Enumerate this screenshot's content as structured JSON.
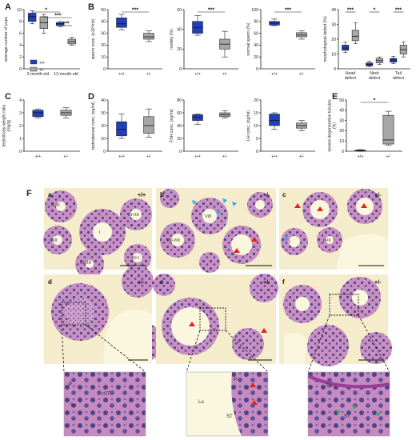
{
  "colors": {
    "wt": "#1f3fbf",
    "het": "#a7a7a7",
    "tissue_bg": "#f6f0cf",
    "tissue": "#c98fc2",
    "nuclei": "#4f4a8a",
    "lumen": "#fbf7df"
  },
  "legend": {
    "wt": "+/+",
    "het": "+/-"
  },
  "sig": {
    "s1": "*",
    "s3": "***"
  },
  "chart_data": [
    {
      "panel": "A",
      "type": "box",
      "ylabel": "average number of pups",
      "ylim": [
        0,
        10
      ],
      "yticks": [
        0,
        2,
        4,
        6,
        8,
        10
      ],
      "categories": [
        "2-month-old",
        "12-month-old"
      ],
      "series": [
        {
          "name": "+/+",
          "boxes": [
            {
              "min": 7.6,
              "q1": 8.0,
              "median": 8.8,
              "q3": 9.4,
              "max": 9.8
            },
            {
              "min": 7.1,
              "q1": 7.3,
              "median": 7.6,
              "q3": 7.8,
              "max": 8.0
            }
          ]
        },
        {
          "name": "+/-",
          "boxes": [
            {
              "min": 6.0,
              "q1": 6.8,
              "median": 7.8,
              "q3": 8.8,
              "max": 9.2
            },
            {
              "min": 4.0,
              "q1": 4.2,
              "median": 4.6,
              "q3": 5.0,
              "max": 5.3
            }
          ]
        }
      ],
      "annotations": [
        "*",
        "***",
        "***"
      ]
    },
    {
      "panel": "B",
      "type": "box",
      "ylabel": "sperm conc. (x10⁶/ml)",
      "ylim": [
        0,
        50
      ],
      "yticks": [
        0,
        10,
        20,
        30,
        40,
        50
      ],
      "categories": [
        "+/+",
        "+/-"
      ],
      "boxes": [
        {
          "min": 33,
          "q1": 35,
          "median": 38,
          "q3": 43,
          "max": 46
        },
        {
          "min": 23,
          "q1": 25,
          "median": 27,
          "q3": 30,
          "max": 32
        }
      ],
      "annotations": [
        "***"
      ]
    },
    {
      "panel": "B",
      "type": "box",
      "ylabel": "motility (%)",
      "ylim": [
        0,
        60
      ],
      "yticks": [
        0,
        20,
        40,
        60
      ],
      "categories": [
        "+/+",
        "+/-"
      ],
      "boxes": [
        {
          "min": 34,
          "q1": 36,
          "median": 42,
          "q3": 48,
          "max": 54
        },
        {
          "min": 12,
          "q1": 20,
          "median": 25,
          "q3": 30,
          "max": 38
        }
      ],
      "annotations": [
        "***"
      ]
    },
    {
      "panel": "B",
      "type": "box",
      "ylabel": "normal sperm (%)",
      "ylim": [
        0,
        100
      ],
      "yticks": [
        0,
        20,
        40,
        60,
        80,
        100
      ],
      "categories": [
        "+/+",
        "+/-"
      ],
      "boxes": [
        {
          "min": 73,
          "q1": 74,
          "median": 77,
          "q3": 80,
          "max": 84
        },
        {
          "min": 50,
          "q1": 54,
          "median": 57,
          "q3": 61,
          "max": 64
        }
      ],
      "annotations": [
        "***"
      ]
    },
    {
      "panel": "B",
      "type": "box",
      "ylabel": "morphological defect (%)",
      "ylim": [
        0,
        40
      ],
      "yticks": [
        0,
        10,
        20,
        30,
        40
      ],
      "categories": [
        "Head defect",
        "Neck defect",
        "Tail defect"
      ],
      "series": [
        {
          "name": "+/+",
          "boxes": [
            {
              "min": 11,
              "q1": 12.5,
              "median": 14,
              "q3": 16,
              "max": 18
            },
            {
              "min": 1.5,
              "q1": 2,
              "median": 3,
              "q3": 4,
              "max": 5
            },
            {
              "min": 3.5,
              "q1": 4.5,
              "median": 6,
              "q3": 7,
              "max": 8.5
            }
          ]
        },
        {
          "name": "+/-",
          "boxes": [
            {
              "min": 17,
              "q1": 19,
              "median": 22,
              "q3": 26,
              "max": 31
            },
            {
              "min": 3,
              "q1": 4,
              "median": 5.5,
              "q3": 7,
              "max": 8
            },
            {
              "min": 8,
              "q1": 10,
              "median": 13,
              "q3": 16,
              "max": 18
            }
          ]
        }
      ],
      "annotations": [
        "***",
        "*",
        "***"
      ]
    },
    {
      "panel": "C",
      "type": "box",
      "ylabel": "testis/body weight ratio (mg/g)",
      "ylim": [
        0,
        4
      ],
      "yticks": [
        0,
        1,
        2,
        3,
        4
      ],
      "categories": [
        "+/+",
        "+/-"
      ],
      "boxes": [
        {
          "min": 2.6,
          "q1": 2.7,
          "median": 3.0,
          "q3": 3.2,
          "max": 3.3
        },
        {
          "min": 2.6,
          "q1": 2.8,
          "median": 3.0,
          "q3": 3.2,
          "max": 3.4
        }
      ]
    },
    {
      "panel": "D",
      "type": "box",
      "ylabel": "testosterone conc. (ng/ml)",
      "ylim": [
        0,
        40
      ],
      "yticks": [
        0,
        10,
        20,
        30,
        40
      ],
      "categories": [
        "+/+",
        "+/-"
      ],
      "boxes": [
        {
          "min": 10,
          "q1": 12,
          "median": 17,
          "q3": 23,
          "max": 29
        },
        {
          "min": 11,
          "q1": 14,
          "median": 20,
          "q3": 27,
          "max": 33
        }
      ]
    },
    {
      "panel": "D",
      "type": "box",
      "ylabel": "FSH conc. (ng/ml)",
      "ylim": [
        0,
        80
      ],
      "yticks": [
        0,
        20,
        40,
        60,
        80
      ],
      "categories": [
        "+/+",
        "+/-"
      ],
      "boxes": [
        {
          "min": 42,
          "q1": 48,
          "median": 53,
          "q3": 57,
          "max": 58
        },
        {
          "min": 52,
          "q1": 54,
          "median": 57,
          "q3": 60,
          "max": 63
        }
      ]
    },
    {
      "panel": "D",
      "type": "box",
      "ylabel": "LH conc. (ng/ml)",
      "ylim": [
        0,
        20
      ],
      "yticks": [
        0,
        5,
        10,
        15,
        20
      ],
      "categories": [
        "+/+",
        "+/-"
      ],
      "boxes": [
        {
          "min": 8.5,
          "q1": 10,
          "median": 12,
          "q3": 14.5,
          "max": 15
        },
        {
          "min": 8,
          "q1": 9,
          "median": 10,
          "q3": 11,
          "max": 12
        }
      ]
    },
    {
      "panel": "E",
      "type": "box",
      "ylabel": "severe degenerative tubules (%)",
      "ylim": [
        0,
        50
      ],
      "yticks": [
        0,
        10,
        20,
        30,
        40,
        50
      ],
      "categories": [
        "+/+",
        "+/-"
      ],
      "boxes": [
        {
          "min": 0,
          "q1": 0.2,
          "median": 0.6,
          "q3": 1.0,
          "max": 1.5
        },
        {
          "min": 6,
          "q1": 7,
          "median": 11,
          "q3": 35,
          "max": 39
        }
      ],
      "annotations": [
        "*"
      ]
    }
  ],
  "micro": {
    "panel": "F",
    "subpanels": [
      {
        "label": "a",
        "genotype": "+/+",
        "stages": [
          "X-XI",
          "XI-XII",
          "II-III",
          "I",
          "XI-XII",
          "XII-I"
        ]
      },
      {
        "label": "b",
        "genotype": "+/-",
        "stages": [
          "VIII",
          "VII-VIII"
        ]
      },
      {
        "label": "c",
        "genotype": "+/-",
        "stages": [
          "II-III",
          "I"
        ]
      },
      {
        "label": "d",
        "genotype": "+/-"
      },
      {
        "label": "e",
        "genotype": "+/-"
      },
      {
        "label": "f",
        "genotype": "+/-"
      }
    ],
    "zooms": [
      {
        "cells": [
          "P",
          "rST",
          "Se"
        ]
      },
      {
        "cells": [
          "Lu",
          "P",
          "ST"
        ]
      },
      {
        "cells": [
          "Se",
          "ST"
        ]
      }
    ]
  }
}
